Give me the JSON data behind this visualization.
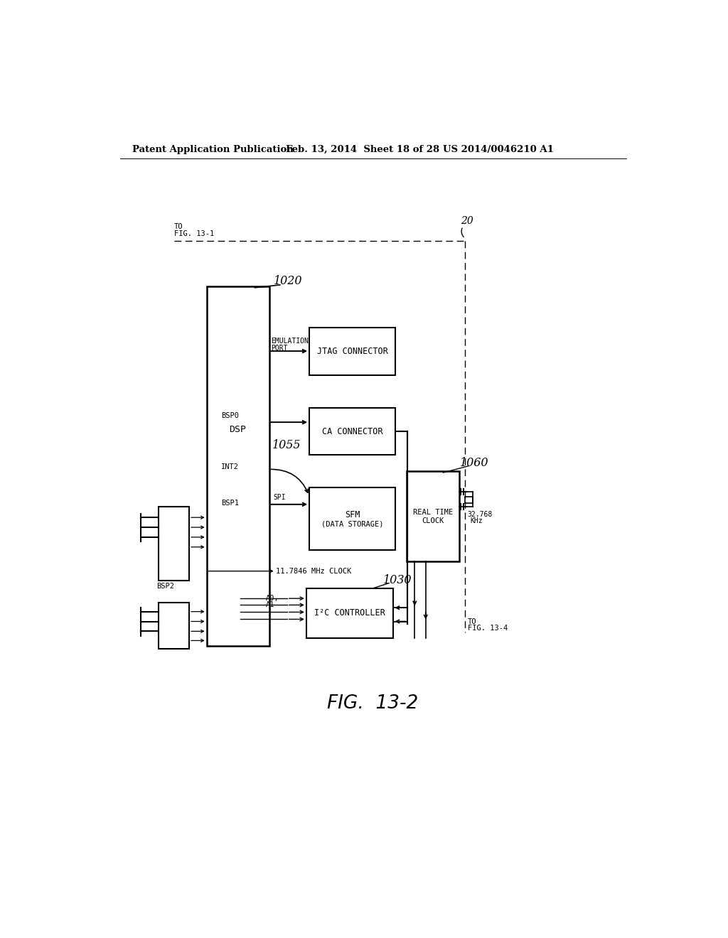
{
  "header_left": "Patent Application Publication",
  "header_mid": "Feb. 13, 2014  Sheet 18 of 28",
  "header_right": "US 2014/0046210 A1",
  "bg_color": "#ffffff",
  "text_color": "#000000",
  "fig_label": "FIG.  13-2",
  "label_20": "20",
  "label_1020": "1020",
  "label_1055": "1055",
  "label_1060": "1060",
  "label_1030": "1030",
  "to_fig131": "TO\nFIG. 13-1",
  "to_fig134_line1": "TO",
  "to_fig134_line2": "FIG. 13-4"
}
